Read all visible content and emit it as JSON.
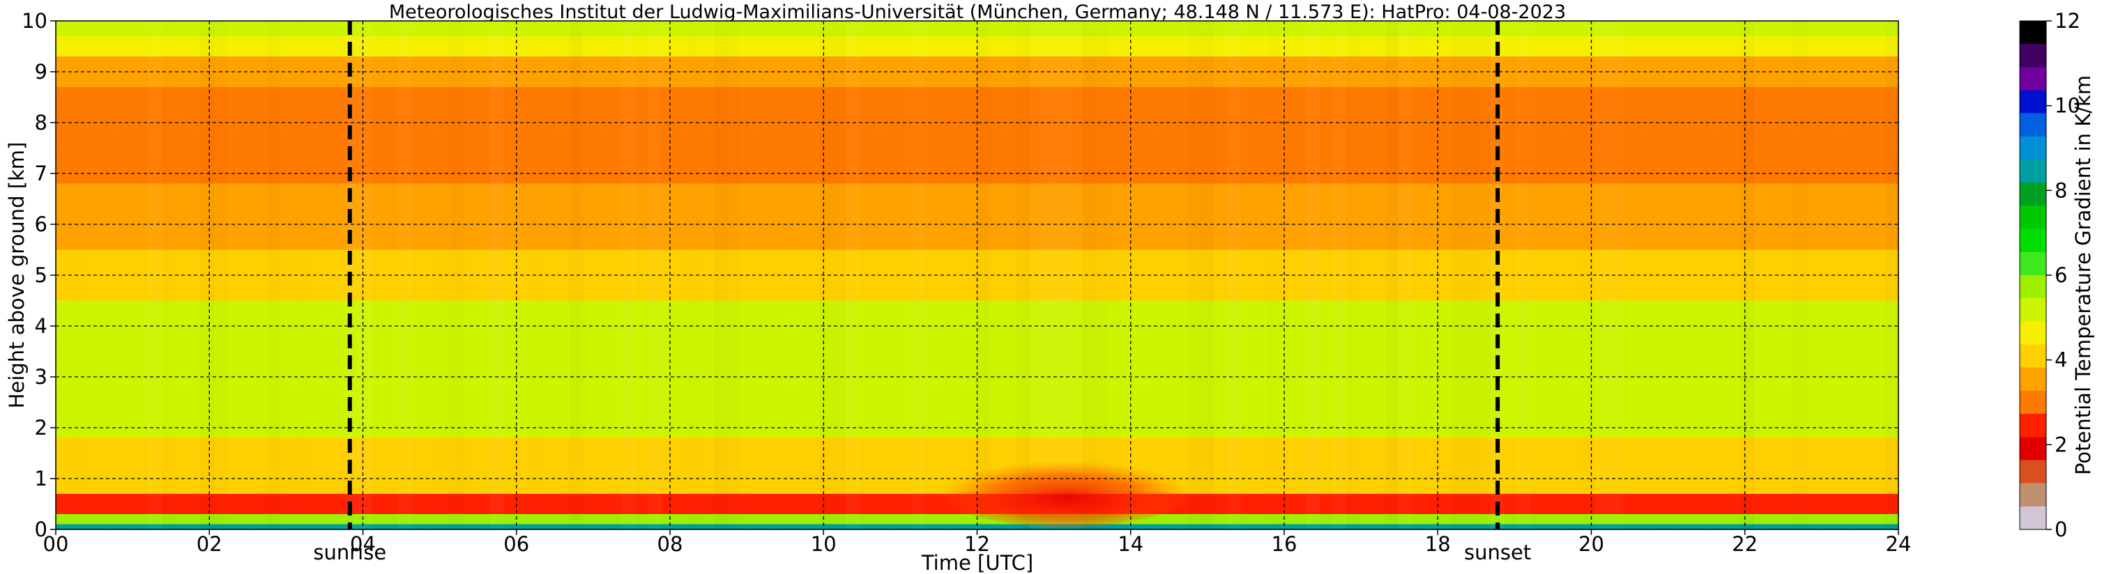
{
  "chart_data": {
    "type": "heatmap",
    "title": "Meteorologisches Institut der Ludwig-Maximilians-Universität (München, Germany; 48.148 N / 11.573 E):    HatPro: 04-08-2023",
    "xlabel": "Time [UTC]",
    "ylabel": "Height above ground [km]",
    "xlim": [
      0,
      24
    ],
    "ylim": [
      0,
      10
    ],
    "x_ticks": [
      "00",
      "02",
      "04",
      "06",
      "08",
      "10",
      "12",
      "14",
      "16",
      "18",
      "20",
      "22",
      "24"
    ],
    "y_ticks": [
      "0",
      "1",
      "2",
      "3",
      "4",
      "5",
      "6",
      "7",
      "8",
      "9",
      "10"
    ],
    "grid": true,
    "events": [
      {
        "label": "sunrise",
        "time": 3.83
      },
      {
        "label": "sunset",
        "time": 18.78
      }
    ],
    "colorbar": {
      "label": "Potential Temperature Gradient in K/km",
      "range": [
        0,
        12
      ],
      "ticks": [
        "0",
        "2",
        "4",
        "6",
        "8",
        "10",
        "12"
      ],
      "colors": [
        "#d2c6d6",
        "#c09070",
        "#d85020",
        "#e00000",
        "#ff2000",
        "#ff7a00",
        "#ffa200",
        "#ffd000",
        "#f5f000",
        "#cdf500",
        "#9ef000",
        "#40e820",
        "#00e000",
        "#00c800",
        "#00a020",
        "#00a0a0",
        "#0090d8",
        "#0060e0",
        "#0010d0",
        "#7000a0",
        "#400060",
        "#000000"
      ]
    },
    "profile_segments": [
      {
        "from_km": 0.0,
        "to_km": 0.1,
        "value": 8.5
      },
      {
        "from_km": 0.1,
        "to_km": 0.3,
        "value": 5.5
      },
      {
        "from_km": 0.3,
        "to_km": 0.7,
        "value": 2.3
      },
      {
        "from_km": 0.7,
        "to_km": 1.2,
        "value": 3.8
      },
      {
        "from_km": 1.2,
        "to_km": 1.8,
        "value": 4.2
      },
      {
        "from_km": 1.8,
        "to_km": 4.5,
        "value": 5.3
      },
      {
        "from_km": 4.5,
        "to_km": 5.5,
        "value": 4.1
      },
      {
        "from_km": 5.5,
        "to_km": 6.8,
        "value": 3.4
      },
      {
        "from_km": 6.8,
        "to_km": 8.7,
        "value": 2.6
      },
      {
        "from_km": 8.7,
        "to_km": 9.3,
        "value": 3.3
      },
      {
        "from_km": 9.3,
        "to_km": 9.7,
        "value": 4.5
      },
      {
        "from_km": 9.7,
        "to_km": 10.0,
        "value": 5.4
      }
    ],
    "features": [
      {
        "name": "daytime boundary-layer heating",
        "t_from": 11.5,
        "t_to": 14.8,
        "h_from_km": 0.05,
        "h_to_km": 1.5,
        "value": 1.8
      },
      {
        "name": "mid-level gradient band",
        "t_from": 0,
        "t_to": 24,
        "h_from_km": 2.0,
        "h_to_km": 4.3,
        "value": 5.4
      }
    ]
  }
}
